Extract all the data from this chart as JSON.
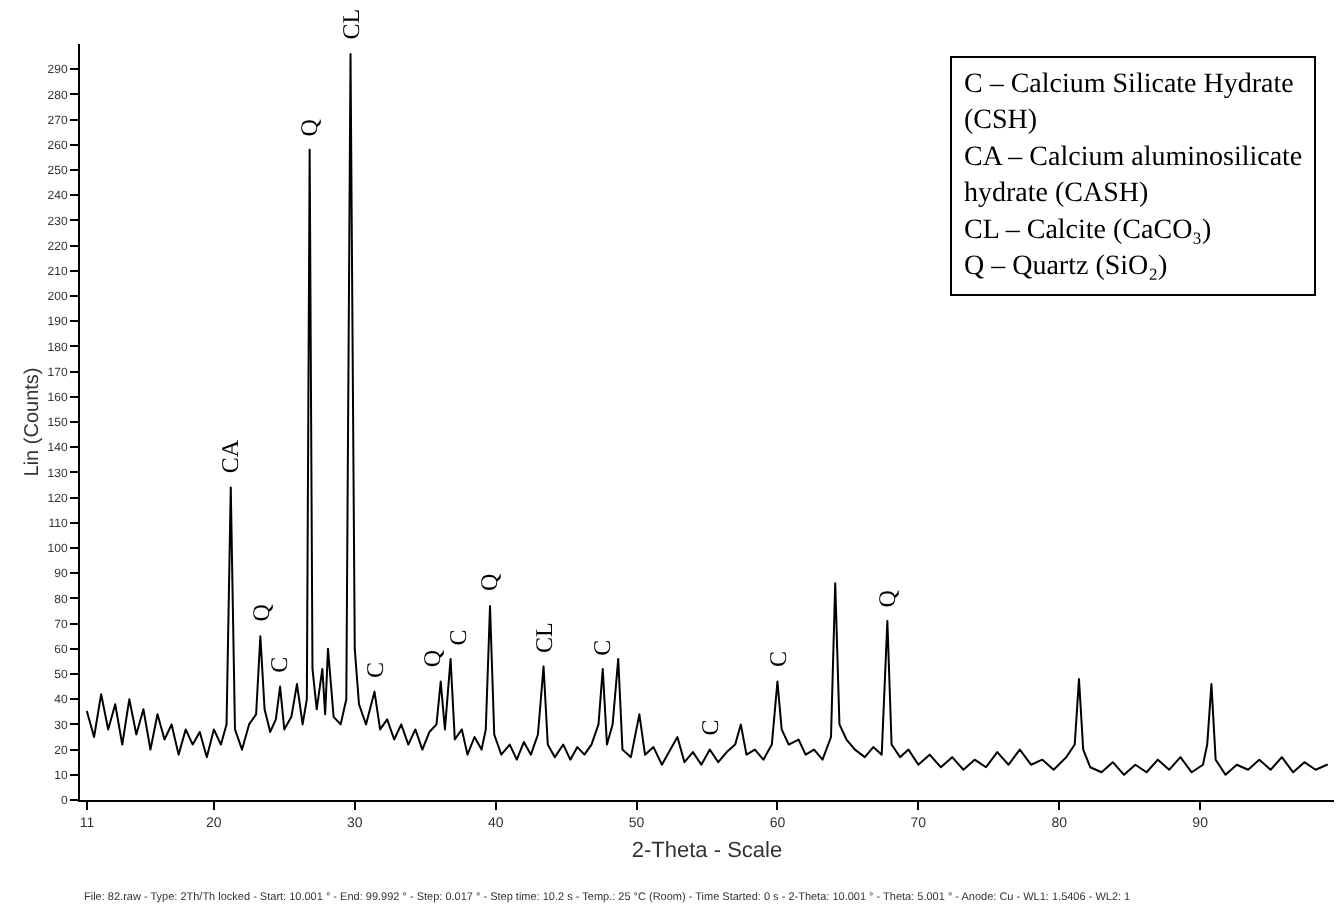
{
  "chart_data": {
    "type": "line",
    "xlabel": "2-Theta - Scale",
    "ylabel": "Lin (Counts)",
    "xlim": [
      10.5,
      99.5
    ],
    "ylim": [
      0,
      300
    ],
    "xticks": [
      11,
      20,
      30,
      40,
      50,
      60,
      70,
      80,
      90
    ],
    "yticks": [
      0,
      10,
      20,
      30,
      40,
      50,
      60,
      70,
      80,
      90,
      100,
      110,
      120,
      130,
      140,
      150,
      160,
      170,
      180,
      190,
      200,
      210,
      220,
      230,
      240,
      250,
      260,
      270,
      280,
      290
    ],
    "marker": "none",
    "line_style": "solid",
    "series": [
      {
        "color": "#000000",
        "x": [
          11,
          11.5,
          12,
          12.5,
          13,
          13.5,
          14,
          14.5,
          15,
          15.5,
          16,
          16.5,
          17,
          17.5,
          18,
          18.5,
          19,
          19.5,
          20,
          20.5,
          20.9,
          21.2,
          21.5,
          22,
          22.5,
          23,
          23.3,
          23.6,
          24,
          24.4,
          24.7,
          25,
          25.5,
          25.9,
          26.3,
          26.6,
          26.8,
          27.0,
          27.3,
          27.7,
          27.9,
          28.1,
          28.5,
          29,
          29.4,
          29.7,
          30.0,
          30.3,
          30.8,
          31.4,
          31.8,
          32.3,
          32.8,
          33.3,
          33.8,
          34.3,
          34.8,
          35.3,
          35.8,
          36.1,
          36.4,
          36.8,
          37.1,
          37.6,
          38,
          38.5,
          39,
          39.3,
          39.6,
          39.9,
          40.4,
          41,
          41.5,
          42,
          42.5,
          43,
          43.4,
          43.7,
          44.2,
          44.8,
          45.3,
          45.8,
          46.3,
          46.8,
          47.3,
          47.6,
          47.9,
          48.3,
          48.7,
          49,
          49.6,
          50.2,
          50.6,
          51.2,
          51.8,
          52.4,
          52.9,
          53.4,
          54,
          54.6,
          55.2,
          55.8,
          56.4,
          57,
          57.4,
          57.8,
          58.4,
          59,
          59.6,
          60.0,
          60.3,
          60.8,
          61.5,
          62,
          62.6,
          63.2,
          63.8,
          64.1,
          64.4,
          64.9,
          65.5,
          66.2,
          66.8,
          67.4,
          67.8,
          68.1,
          68.7,
          69.3,
          70,
          70.8,
          71.6,
          72.4,
          73.2,
          74,
          74.8,
          75.6,
          76.4,
          77.2,
          78,
          78.8,
          79.6,
          80.5,
          81.1,
          81.4,
          81.7,
          82.2,
          83,
          83.8,
          84.6,
          85.4,
          86.2,
          87,
          87.8,
          88.6,
          89.4,
          90.2,
          90.5,
          90.8,
          91.1,
          91.8,
          92.6,
          93.4,
          94.2,
          95,
          95.8,
          96.6,
          97.4,
          98.2,
          99
        ],
        "values": [
          35,
          25,
          42,
          28,
          38,
          22,
          40,
          26,
          36,
          20,
          34,
          24,
          30,
          18,
          28,
          22,
          27,
          17,
          28,
          22,
          30,
          124,
          28,
          20,
          30,
          34,
          65,
          36,
          27,
          32,
          45,
          28,
          33,
          46,
          30,
          40,
          258,
          52,
          36,
          52,
          34,
          60,
          33,
          30,
          40,
          296,
          60,
          38,
          30,
          43,
          28,
          32,
          24,
          30,
          22,
          28,
          20,
          27,
          30,
          47,
          28,
          56,
          24,
          28,
          18,
          25,
          20,
          28,
          77,
          26,
          18,
          22,
          16,
          23,
          18,
          26,
          53,
          22,
          17,
          22,
          16,
          21,
          18,
          22,
          30,
          52,
          22,
          30,
          56,
          20,
          17,
          34,
          18,
          21,
          14,
          20,
          25,
          15,
          19,
          14,
          20,
          15,
          19,
          22,
          30,
          18,
          20,
          16,
          22,
          47,
          28,
          22,
          24,
          18,
          20,
          16,
          25,
          86,
          30,
          24,
          20,
          17,
          21,
          18,
          71,
          22,
          17,
          20,
          14,
          18,
          13,
          17,
          12,
          16,
          13,
          19,
          14,
          20,
          14,
          16,
          12,
          17,
          22,
          48,
          20,
          13,
          11,
          15,
          10,
          14,
          11,
          16,
          12,
          17,
          11,
          14,
          22,
          46,
          16,
          10,
          14,
          12,
          16,
          12,
          17,
          11,
          15,
          12,
          14
        ]
      }
    ],
    "annotations": [
      {
        "text": "CA",
        "x": 21.2,
        "y": 124
      },
      {
        "text": "Q",
        "x": 23.3,
        "y": 65
      },
      {
        "text": "C",
        "x": 24.7,
        "y": 45
      },
      {
        "text": "Q",
        "x": 26.8,
        "y": 258
      },
      {
        "text": "CL",
        "x": 29.7,
        "y": 296
      },
      {
        "text": "C",
        "x": 31.4,
        "y": 43
      },
      {
        "text": "Q",
        "x": 36.1,
        "y": 47
      },
      {
        "text": "C",
        "x": 36.8,
        "y": 56
      },
      {
        "text": "Q",
        "x": 39.6,
        "y": 77
      },
      {
        "text": "CL",
        "x": 43.4,
        "y": 53
      },
      {
        "text": "C",
        "x": 47.6,
        "y": 52
      },
      {
        "text": "C",
        "x": 55.2,
        "y": 20
      },
      {
        "text": "C",
        "x": 60.0,
        "y": 47
      },
      {
        "text": "Q",
        "x": 67.8,
        "y": 71
      },
      "C – Calcium Silicate Hydrate (CSH)",
      "CA – Calcium aluminosilicate hydrate (CASH)",
      "CL – Calcite (CaCO₃)",
      "Q – Quartz (SiO₂)",
      "File: 82.raw - Type: 2Th/Th locked - Start: 10.001 ° - End: 99.992 ° - Step: 0.017 ° - Step time: 10.2 s - Temp.: 25 °C (Room) - Time Started: 0 s - 2-Theta: 10.001 ° - Theta: 5.001 ° - Anode: Cu - WL1: 1.5406 - WL2: 1"
    ]
  }
}
